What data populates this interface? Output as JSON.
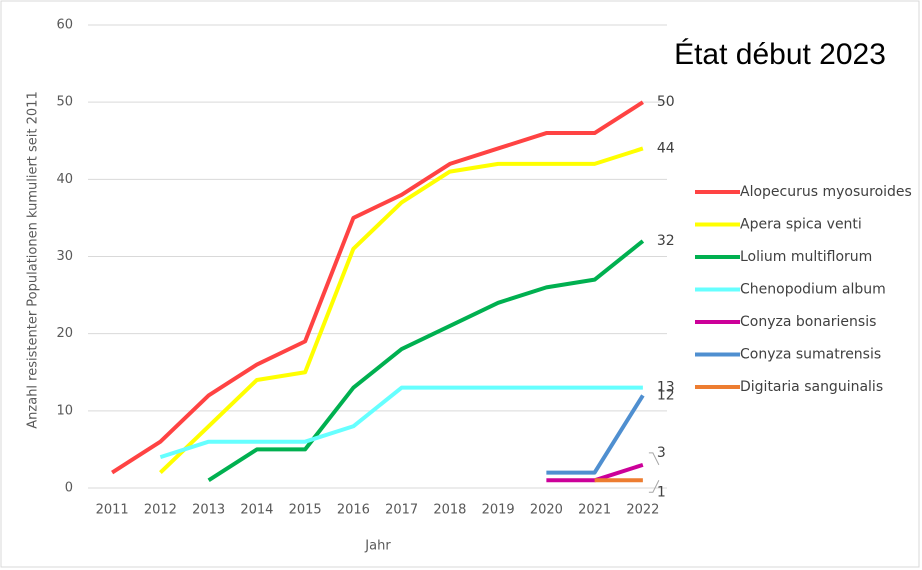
{
  "chart_data": {
    "type": "line",
    "title": "État début 2023",
    "x_label": "Jahr",
    "y_label": "Anzahl resistenter Populationen kumuliert seit 2011",
    "categories": [
      "2011",
      "2012",
      "2013",
      "2014",
      "2015",
      "2016",
      "2017",
      "2018",
      "2019",
      "2020",
      "2021",
      "2022"
    ],
    "ylim": [
      0,
      60
    ],
    "yticks": [
      0,
      10,
      20,
      30,
      40,
      50,
      60
    ],
    "grid": true,
    "legend": "right",
    "series": [
      {
        "name": "Alopecurus myosuroides",
        "color": "#ff4343",
        "values": [
          2,
          6,
          12,
          16,
          19,
          35,
          38,
          42,
          44,
          46,
          46,
          50
        ]
      },
      {
        "name": "Apera spica venti",
        "color": "#ffff00",
        "values": [
          null,
          2,
          8,
          14,
          15,
          31,
          37,
          41,
          42,
          42,
          42,
          44
        ]
      },
      {
        "name": "Lolium multiflorum",
        "color": "#00b050",
        "values": [
          null,
          null,
          1,
          5,
          5,
          13,
          18,
          21,
          24,
          26,
          27,
          32
        ]
      },
      {
        "name": "Chenopodium album",
        "color": "#66ffff",
        "values": [
          null,
          4,
          6,
          6,
          6,
          8,
          13,
          13,
          13,
          13,
          13,
          13
        ]
      },
      {
        "name": "Conyza bonariensis",
        "color": "#cc0099",
        "values": [
          null,
          null,
          null,
          null,
          null,
          null,
          null,
          null,
          null,
          1,
          1,
          3
        ]
      },
      {
        "name": "Conyza sumatrensis",
        "color": "#4f8fd0",
        "values": [
          null,
          null,
          null,
          null,
          null,
          null,
          null,
          null,
          null,
          2,
          2,
          12
        ]
      },
      {
        "name": "Digitaria sanguinalis",
        "color": "#ed7d31",
        "values": [
          null,
          null,
          null,
          null,
          null,
          null,
          null,
          null,
          null,
          null,
          1,
          1
        ]
      }
    ]
  }
}
